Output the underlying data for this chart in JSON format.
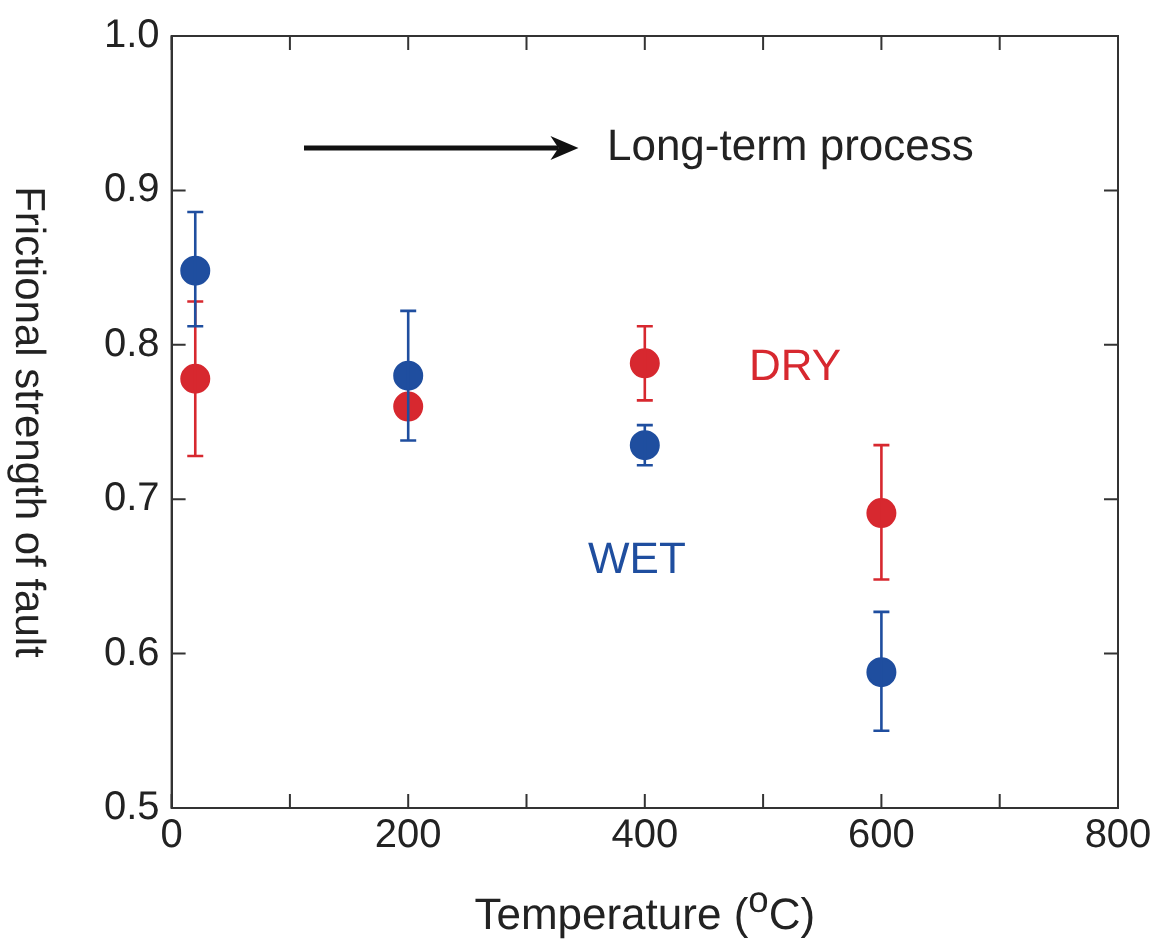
{
  "chart_data": {
    "type": "scatter",
    "xlabel": "Temperature ($^{o}$C)",
    "ylabel": "Frictional strength of fault",
    "annotations": [
      "Long-term process"
    ],
    "x": [
      20,
      200,
      400,
      600
    ],
    "series": [
      {
        "name": "DRY",
        "color": "#d7282f",
        "values": [
          0.778,
          0.76,
          0.788,
          0.691
        ],
        "errors": [
          [
            0.728,
            0.828
          ],
          null,
          [
            0.764,
            0.812
          ],
          [
            0.648,
            0.735
          ]
        ]
      },
      {
        "name": "WET",
        "color": "#1f4e9f",
        "values": [
          0.848,
          0.78,
          0.735,
          0.588
        ],
        "errors": [
          [
            0.812,
            0.886
          ],
          [
            0.738,
            0.822
          ],
          [
            0.722,
            0.748
          ],
          [
            0.55,
            0.627
          ]
        ]
      }
    ],
    "xlim": [
      0,
      800
    ],
    "xticks": [
      0,
      {
        "value": 100,
        "label": null
      },
      200,
      {
        "value": 300,
        "label": null
      },
      400,
      {
        "value": 500,
        "label": null
      },
      600,
      {
        "value": 700,
        "label": null
      },
      800
    ],
    "ylim": [
      0.5,
      1.0
    ],
    "yticks": [
      0.5,
      0.6,
      0.7,
      0.8,
      0.9,
      {
        "value": 1.0,
        "label": "1.0"
      }
    ],
    "grid": false,
    "legend": false,
    "marker": "circle"
  }
}
